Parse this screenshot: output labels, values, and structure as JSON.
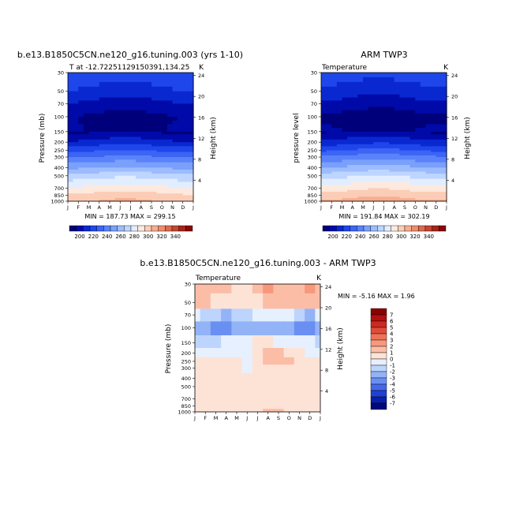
{
  "chart_data": [
    {
      "type": "heatmap",
      "title": "b.e13.B1850C5CN.ne120_g16.tuning.003 (yrs 1-10)",
      "subtitle_left": "T at -12.72251129150391,134.25",
      "subtitle_right": "K",
      "ylabel": "Pressure (mb)",
      "ylabel_right": "Height (km)",
      "months": [
        "J",
        "F",
        "M",
        "A",
        "M",
        "J",
        "J",
        "A",
        "S",
        "O",
        "N",
        "D",
        "J"
      ],
      "pressure_levels": [
        30,
        50,
        70,
        100,
        150,
        200,
        250,
        300,
        400,
        500,
        700,
        850,
        1000
      ],
      "height_ticks": [
        24,
        20,
        16,
        12,
        8,
        4
      ],
      "stats": "MIN = 187.73  MAX = 299.15",
      "min": 187.73,
      "max": 299.15,
      "profile_K": [
        223,
        214,
        205,
        197,
        198,
        211,
        224,
        235,
        252,
        266,
        282,
        291,
        297
      ]
    },
    {
      "type": "heatmap",
      "title": "ARM TWP3",
      "subtitle_left": "Temperature",
      "subtitle_right": "K",
      "ylabel": "pressure level",
      "ylabel_right": "Height (km)",
      "months": [
        "J",
        "F",
        "M",
        "A",
        "M",
        "J",
        "J",
        "A",
        "S",
        "O",
        "N",
        "D",
        "J"
      ],
      "pressure_levels": [
        30,
        50,
        70,
        100,
        150,
        200,
        250,
        300,
        400,
        500,
        700,
        850,
        1000
      ],
      "height_ticks": [
        24,
        20,
        16,
        12,
        8,
        4
      ],
      "stats": "MIN = 191.84  MAX = 302.19",
      "min": 191.84,
      "max": 302.19,
      "profile_K": [
        222,
        212,
        204,
        195,
        199,
        213,
        226,
        238,
        254,
        268,
        285,
        293,
        300
      ]
    },
    {
      "type": "heatmap",
      "title": "b.e13.B1850C5CN.ne120_g16.tuning.003 - ARM TWP3",
      "subtitle_left": "Temperature",
      "subtitle_right": "K",
      "ylabel": "Pressure (mb)",
      "ylabel_right": "Height (km)",
      "months": [
        "J",
        "F",
        "M",
        "A",
        "M",
        "J",
        "J",
        "A",
        "S",
        "O",
        "N",
        "D",
        "J"
      ],
      "pressure_levels": [
        30,
        50,
        70,
        100,
        150,
        200,
        250,
        300,
        400,
        500,
        700,
        850,
        1000
      ],
      "height_ticks": [
        24,
        20,
        16,
        12,
        8,
        4
      ],
      "stats": "MIN =  -5.16  MAX =   1.96",
      "min": -5.16,
      "max": 1.96,
      "diff_grid": [
        [
          0,
          0,
          0,
          0,
          -1,
          -1,
          0,
          1,
          0,
          0,
          0,
          1,
          0
        ],
        [
          0,
          0,
          -1,
          -1,
          -1,
          -1,
          -1,
          0,
          0,
          0,
          0,
          0,
          0
        ],
        [
          -2,
          -3,
          -3,
          -4,
          -3,
          -3,
          -2,
          -2,
          -2,
          -2,
          -3,
          -4,
          -2
        ],
        [
          -4,
          -4,
          -5,
          -5,
          -4,
          -4,
          -4,
          -4,
          -4,
          -4,
          -5,
          -5,
          -4
        ],
        [
          -3,
          -3,
          -3,
          -2,
          -2,
          -2,
          -1,
          -1,
          -2,
          -2,
          -2,
          -2,
          -3
        ],
        [
          -2,
          -2,
          -2,
          -2,
          -2,
          -2,
          -1,
          0,
          0,
          -1,
          -1,
          -2,
          -2
        ],
        [
          -1,
          -1,
          -1,
          -1,
          -1,
          -2,
          -1,
          0,
          0,
          0,
          -1,
          -1,
          -1
        ],
        [
          -1,
          -1,
          -1,
          -1,
          -1,
          -2,
          -1,
          -1,
          -1,
          -1,
          -1,
          -1,
          -1
        ],
        [
          -1,
          -1,
          -1,
          -1,
          -1,
          -1,
          -1,
          -1,
          -1,
          -1,
          -1,
          -1,
          -1
        ],
        [
          -1,
          -1,
          -1,
          -1,
          -1,
          -1,
          -1,
          -1,
          -1,
          -1,
          -1,
          -1,
          -1
        ],
        [
          -1,
          -1,
          -1,
          -1,
          -1,
          -1,
          -1,
          -1,
          -1,
          -1,
          -1,
          -1,
          -1
        ],
        [
          -1,
          -1,
          -1,
          -1,
          -1,
          -1,
          -1,
          -1,
          -1,
          -1,
          -1,
          -1,
          -1
        ],
        [
          -1,
          -1,
          -1,
          -1,
          -1,
          -1,
          -1,
          0,
          0,
          -1,
          -1,
          -1,
          -1
        ]
      ]
    }
  ],
  "abs_colorbar": {
    "labels": [
      "200",
      "220",
      "240",
      "260",
      "280",
      "300",
      "320",
      "340"
    ],
    "colors": [
      "#00007a",
      "#000aa8",
      "#0a28d0",
      "#1e46ea",
      "#3c64f5",
      "#5a82fa",
      "#7aa0fc",
      "#9cbcfe",
      "#bed6ff",
      "#e2eeff",
      "#fde9de",
      "#fccdb6",
      "#f7ad8f",
      "#ec8c6d",
      "#dc6a4f",
      "#c44634",
      "#a62418",
      "#880808"
    ]
  },
  "diff_colorbar": {
    "labels": [
      "7",
      "6",
      "5",
      "4",
      "3",
      "2",
      "1",
      "0",
      "-1",
      "-2",
      "-3",
      "-4",
      "-5",
      "-6",
      "-7"
    ],
    "colors": [
      "#8c0000",
      "#b01010",
      "#cc2a1e",
      "#e04c3a",
      "#ee7358",
      "#f7987c",
      "#fcbda6",
      "#fde3d6",
      "#e6f0ff",
      "#bdd4fc",
      "#93b3f7",
      "#6a8ff2",
      "#4468ea",
      "#2040d4",
      "#0a1eaa",
      "#00087a"
    ]
  }
}
